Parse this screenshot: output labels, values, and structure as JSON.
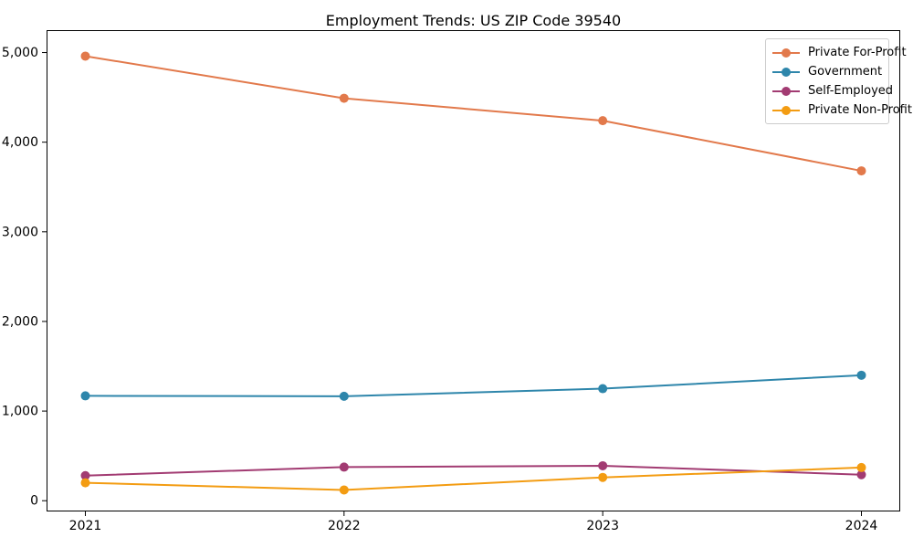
{
  "figure": {
    "background": "#ffffff",
    "axis_color": "#000000",
    "legend_border_color": "#cccccc"
  },
  "chart_data": {
    "type": "line",
    "title": "Employment Trends: US ZIP Code 39540",
    "x": [
      2021,
      2022,
      2023,
      2024
    ],
    "x_tick_labels": [
      "2021",
      "2022",
      "2023",
      "2024"
    ],
    "y_ticks": [
      0,
      1000,
      2000,
      3000,
      4000,
      5000
    ],
    "y_tick_labels": [
      "0",
      "1,000",
      "2,000",
      "3,000",
      "4,000",
      "5,000"
    ],
    "xlim": [
      2020.85,
      2024.15
    ],
    "ylim": [
      -120,
      5250
    ],
    "grid": false,
    "legend_position": "upper right",
    "series": [
      {
        "name": "Private For-Profit",
        "color": "#E2794B",
        "values": [
          4960,
          4490,
          4240,
          3680
        ]
      },
      {
        "name": "Government",
        "color": "#2E86AB",
        "values": [
          1170,
          1165,
          1250,
          1400
        ]
      },
      {
        "name": "Self-Employed",
        "color": "#A23B72",
        "values": [
          280,
          375,
          390,
          290
        ]
      },
      {
        "name": "Private Non-Profit",
        "color": "#F39C12",
        "values": [
          200,
          120,
          260,
          370
        ]
      }
    ]
  }
}
